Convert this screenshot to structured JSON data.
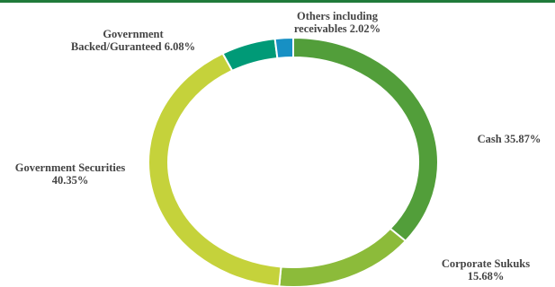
{
  "chart_data": {
    "type": "donut",
    "categories": [
      "Cash",
      "Corporate Sukuks",
      "Government Securities",
      "Government Backed/Guranteed",
      "Others including receivables"
    ],
    "values": [
      35.87,
      15.68,
      40.35,
      6.08,
      2.02
    ],
    "value_labels": [
      "35.87%",
      "15.68%",
      "40.35%",
      "6.08%",
      "2.02%"
    ],
    "colors": [
      "#529e3a",
      "#8cbb3a",
      "#c5d23b",
      "#009a77",
      "#1790c4"
    ]
  }
}
